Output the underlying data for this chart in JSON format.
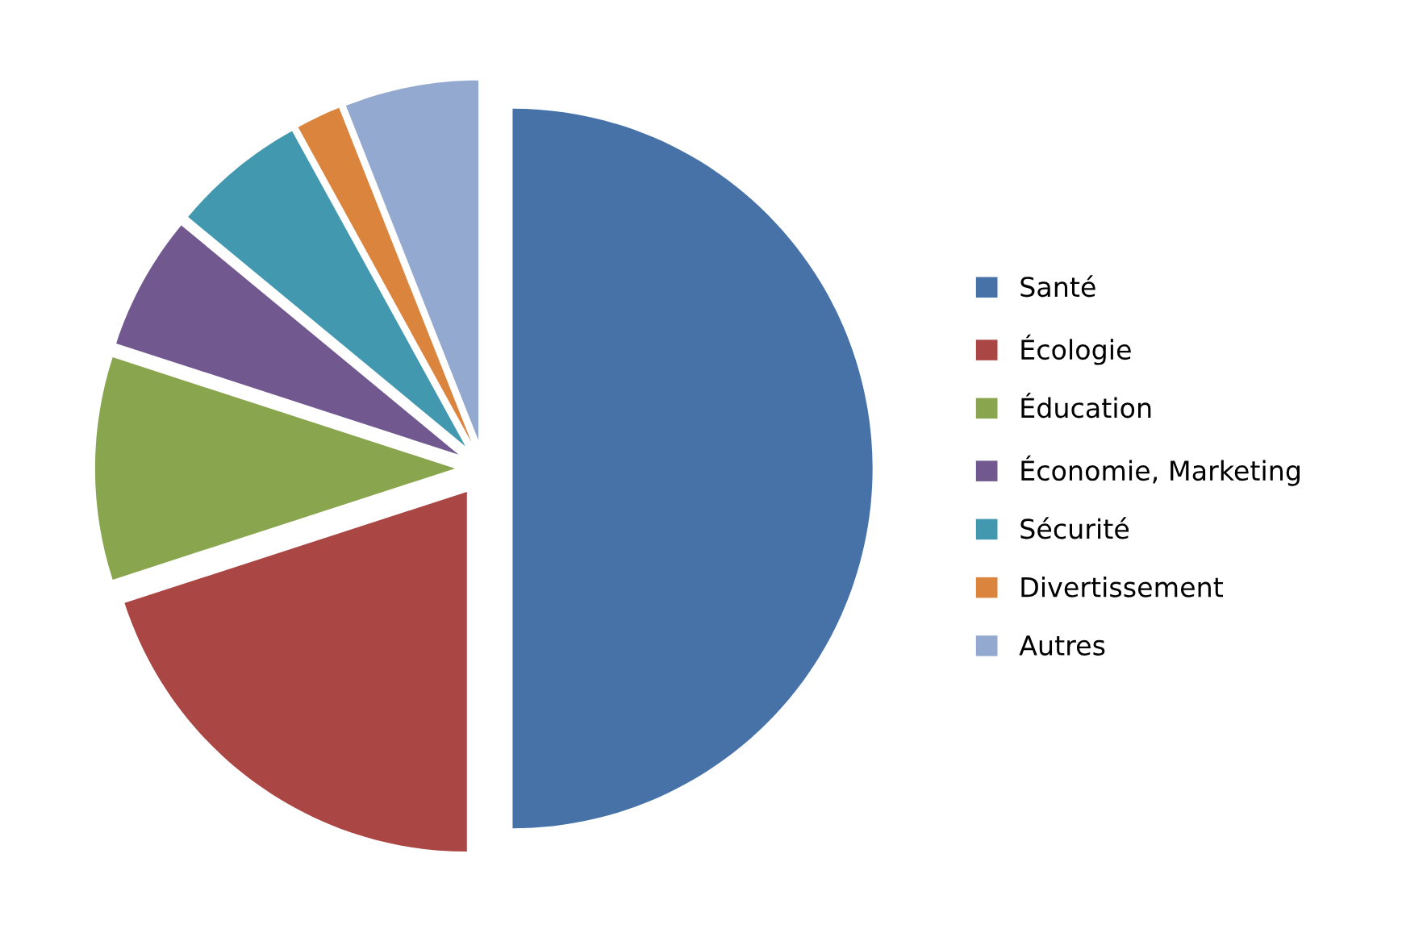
{
  "chart_data": {
    "type": "pie",
    "categories": [
      "Santé",
      "Écologie",
      "Éducation",
      "Économie, Marketing",
      "Sécurité",
      "Divertissement",
      "Autres"
    ],
    "values": [
      50,
      20,
      10,
      6,
      6,
      2,
      6
    ],
    "colors": [
      "#4672a8",
      "#aa4643",
      "#89a54e",
      "#71588f",
      "#4198af",
      "#db843d",
      "#93a9cf"
    ],
    "legend": "right"
  }
}
